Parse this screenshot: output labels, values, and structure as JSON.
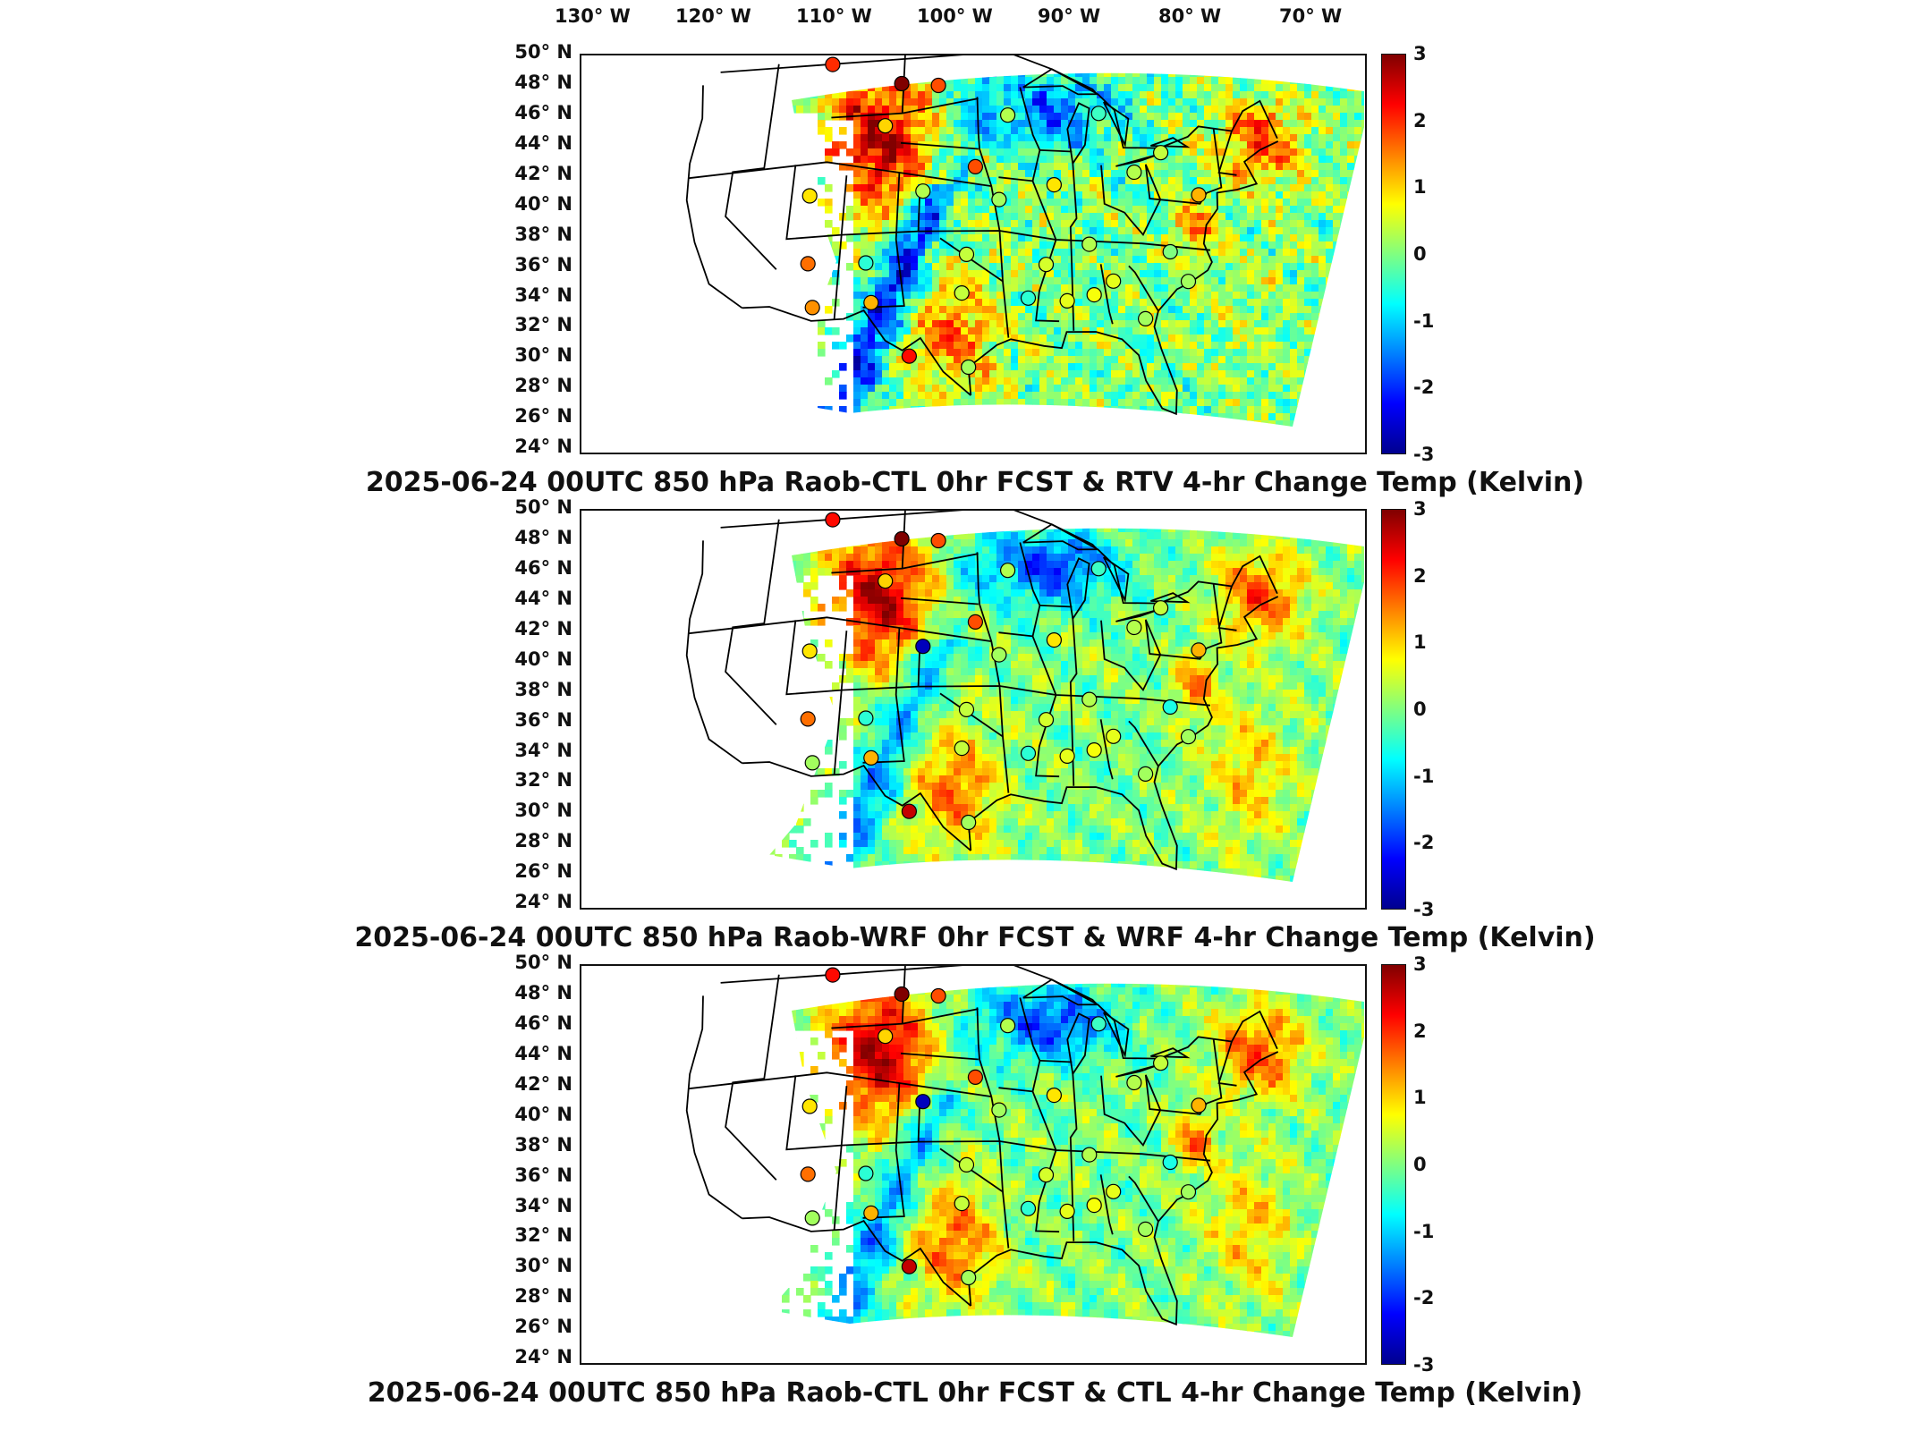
{
  "colormap": [
    "#00008f",
    "#0000ff",
    "#0080ff",
    "#00ffff",
    "#80ff80",
    "#ffff00",
    "#ff8000",
    "#ff0000",
    "#800000"
  ],
  "lon_labels": [
    "130° W",
    "120° W",
    "110° W",
    "100° W",
    "90° W",
    "80° W",
    "70° W"
  ],
  "lat_labels": [
    "50° N",
    "48° N",
    "46° N",
    "44° N",
    "42° N",
    "40° N",
    "38° N",
    "36° N",
    "34° N",
    "32° N",
    "30° N",
    "28° N",
    "26° N",
    "24° N"
  ],
  "colorbar": {
    "ticks": [
      "3",
      "2",
      "1",
      "0",
      "-1",
      "-2",
      "-3"
    ],
    "vmin": -3,
    "vmax": 3
  },
  "panels": [
    {
      "title": "2025-06-24 00UTC 850 hPa Raob-CTL 0hr FCST & RTV 4-hr Change Temp (Kelvin)"
    },
    {
      "title": "2025-06-24 00UTC 850 hPa Raob-WRF 0hr FCST & WRF 4-hr Change Temp (Kelvin)"
    },
    {
      "title": "2025-06-24 00UTC 850 hPa Raob-CTL 0hr FCST & CTL 4-hr Change Temp (Kelvin)"
    }
  ],
  "raob_stations": [
    {
      "lon": -111.4,
      "lat": 48.6,
      "values": [
        2.0,
        2.2,
        2.2
      ]
    },
    {
      "lon": -104.2,
      "lat": 47.0,
      "values": [
        3.0,
        3.0,
        3.0
      ]
    },
    {
      "lon": -100.5,
      "lat": 46.8,
      "values": [
        1.8,
        1.8,
        1.8
      ]
    },
    {
      "lon": -105.6,
      "lat": 44.2,
      "values": [
        1.0,
        1.0,
        1.0
      ]
    },
    {
      "lon": -93.6,
      "lat": 44.8,
      "values": [
        0.3,
        0.3,
        0.3
      ]
    },
    {
      "lon": -84.6,
      "lat": 45.2,
      "values": [
        -0.4,
        -0.4,
        -0.4
      ]
    },
    {
      "lon": -78.9,
      "lat": 42.9,
      "values": [
        0.4,
        0.4,
        0.4
      ]
    },
    {
      "lon": -96.8,
      "lat": 41.3,
      "values": [
        1.8,
        1.8,
        1.8
      ]
    },
    {
      "lon": -89.4,
      "lat": 40.2,
      "values": [
        0.9,
        0.9,
        0.9
      ]
    },
    {
      "lon": -81.7,
      "lat": 41.4,
      "values": [
        0.3,
        0.3,
        0.3
      ]
    },
    {
      "lon": -75.8,
      "lat": 40.3,
      "values": [
        1.2,
        1.2,
        1.2
      ]
    },
    {
      "lon": -112.3,
      "lat": 39.8,
      "values": [
        0.9,
        0.9,
        0.9
      ]
    },
    {
      "lon": -101.7,
      "lat": 39.7,
      "values": [
        0.3,
        -2.7,
        -2.7
      ]
    },
    {
      "lon": -94.6,
      "lat": 39.1,
      "values": [
        0.2,
        0.2,
        0.2
      ]
    },
    {
      "lon": -86.5,
      "lat": 36.3,
      "values": [
        0.3,
        0.3,
        0.3
      ]
    },
    {
      "lon": -79.2,
      "lat": 36.2,
      "values": [
        0.0,
        -0.6,
        -0.6
      ]
    },
    {
      "lon": -111.8,
      "lat": 35.2,
      "values": [
        1.6,
        1.6,
        1.6
      ]
    },
    {
      "lon": -106.6,
      "lat": 35.0,
      "values": [
        -0.5,
        -0.5,
        -0.5
      ]
    },
    {
      "lon": -97.6,
      "lat": 35.4,
      "values": [
        0.4,
        0.4,
        0.4
      ]
    },
    {
      "lon": -90.5,
      "lat": 34.8,
      "values": [
        0.5,
        0.5,
        0.5
      ]
    },
    {
      "lon": -84.6,
      "lat": 33.9,
      "values": [
        0.6,
        0.6,
        0.6
      ]
    },
    {
      "lon": -77.9,
      "lat": 34.3,
      "values": [
        0.2,
        0.2,
        0.2
      ]
    },
    {
      "lon": -111.0,
      "lat": 32.2,
      "values": [
        1.4,
        0.2,
        0.2
      ]
    },
    {
      "lon": -105.9,
      "lat": 32.3,
      "values": [
        1.2,
        1.2,
        1.2
      ]
    },
    {
      "lon": -98.0,
      "lat": 32.8,
      "values": [
        0.4,
        0.4,
        0.4
      ]
    },
    {
      "lon": -92.2,
      "lat": 32.5,
      "values": [
        -0.5,
        -0.5,
        -0.5
      ]
    },
    {
      "lon": -88.8,
      "lat": 32.4,
      "values": [
        0.6,
        0.6,
        0.6
      ]
    },
    {
      "lon": -86.4,
      "lat": 32.9,
      "values": [
        0.7,
        0.7,
        0.7
      ]
    },
    {
      "lon": -82.1,
      "lat": 31.5,
      "values": [
        0.2,
        0.2,
        0.2
      ]
    },
    {
      "lon": -102.4,
      "lat": 28.6,
      "values": [
        2.2,
        2.6,
        2.6
      ]
    },
    {
      "lon": -97.4,
      "lat": 27.8,
      "values": [
        0.2,
        0.2,
        0.2
      ]
    }
  ]
}
